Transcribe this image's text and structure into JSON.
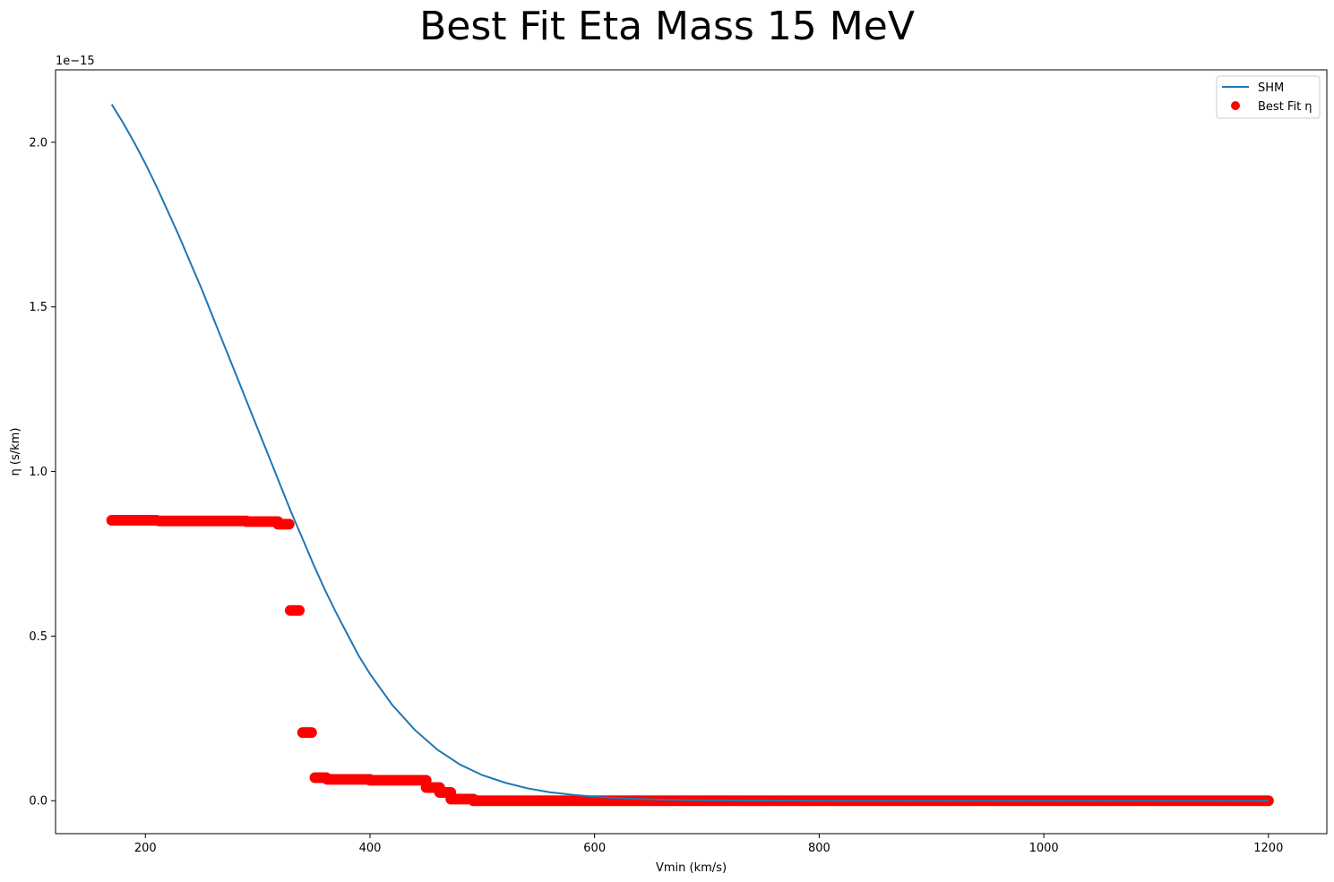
{
  "chart_data": {
    "type": "scatter",
    "title": "Best Fit Eta Mass 15 MeV",
    "xlabel": "Vmin (km/s)",
    "ylabel": "η (s/km)",
    "y_offset_text": "1e−15",
    "y_scale": 1e-15,
    "xlim": [
      120,
      1252
    ],
    "ylim": [
      -0.1,
      2.22
    ],
    "x_ticks": [
      200,
      400,
      600,
      800,
      1000,
      1200
    ],
    "y_ticks": [
      0.0,
      0.5,
      1.0,
      1.5,
      2.0
    ],
    "x_tick_labels": [
      "200",
      "400",
      "600",
      "800",
      "1000",
      "1200"
    ],
    "y_tick_labels": [
      "0.0",
      "0.5",
      "1.0",
      "1.5",
      "2.0"
    ],
    "grid": false,
    "legend_position": "top-right",
    "series": [
      {
        "name": "SHM",
        "kind": "line",
        "color": "#1f77b4",
        "x": [
          170,
          180,
          190,
          200,
          210,
          220,
          230,
          240,
          250,
          260,
          270,
          280,
          290,
          300,
          310,
          320,
          330,
          340,
          350,
          360,
          370,
          380,
          390,
          400,
          420,
          440,
          460,
          480,
          500,
          520,
          540,
          560,
          580,
          600,
          620,
          640,
          660,
          700,
          800,
          900,
          1000,
          1100,
          1200
        ],
        "y": [
          2.115,
          2.06,
          2.0,
          1.935,
          1.865,
          1.79,
          1.715,
          1.635,
          1.555,
          1.47,
          1.385,
          1.3,
          1.215,
          1.13,
          1.045,
          0.96,
          0.875,
          0.795,
          0.715,
          0.64,
          0.57,
          0.505,
          0.44,
          0.385,
          0.29,
          0.215,
          0.155,
          0.11,
          0.078,
          0.055,
          0.038,
          0.026,
          0.018,
          0.012,
          0.008,
          0.005,
          0.003,
          0.001,
          0.0002,
          0.0,
          0.0,
          0.0,
          0.0
        ]
      },
      {
        "name": "Best Fit η",
        "kind": "scatter",
        "color": "#ff0000",
        "segments": [
          {
            "x0": 170,
            "x1": 210,
            "y": 0.852
          },
          {
            "x0": 212,
            "x1": 290,
            "y": 0.85
          },
          {
            "x0": 290,
            "x1": 318,
            "y": 0.848
          },
          {
            "x0": 318,
            "x1": 329,
            "y": 0.84
          },
          {
            "x0": 329,
            "x1": 338,
            "y": 0.578
          },
          {
            "x0": 340,
            "x1": 349,
            "y": 0.207
          },
          {
            "x0": 351,
            "x1": 362,
            "y": 0.07
          },
          {
            "x0": 362,
            "x1": 400,
            "y": 0.065
          },
          {
            "x0": 400,
            "x1": 450,
            "y": 0.062
          },
          {
            "x0": 450,
            "x1": 462,
            "y": 0.04
          },
          {
            "x0": 462,
            "x1": 472,
            "y": 0.025
          },
          {
            "x0": 472,
            "x1": 492,
            "y": 0.005
          },
          {
            "x0": 492,
            "x1": 1200,
            "y": 0.0
          }
        ]
      }
    ]
  }
}
